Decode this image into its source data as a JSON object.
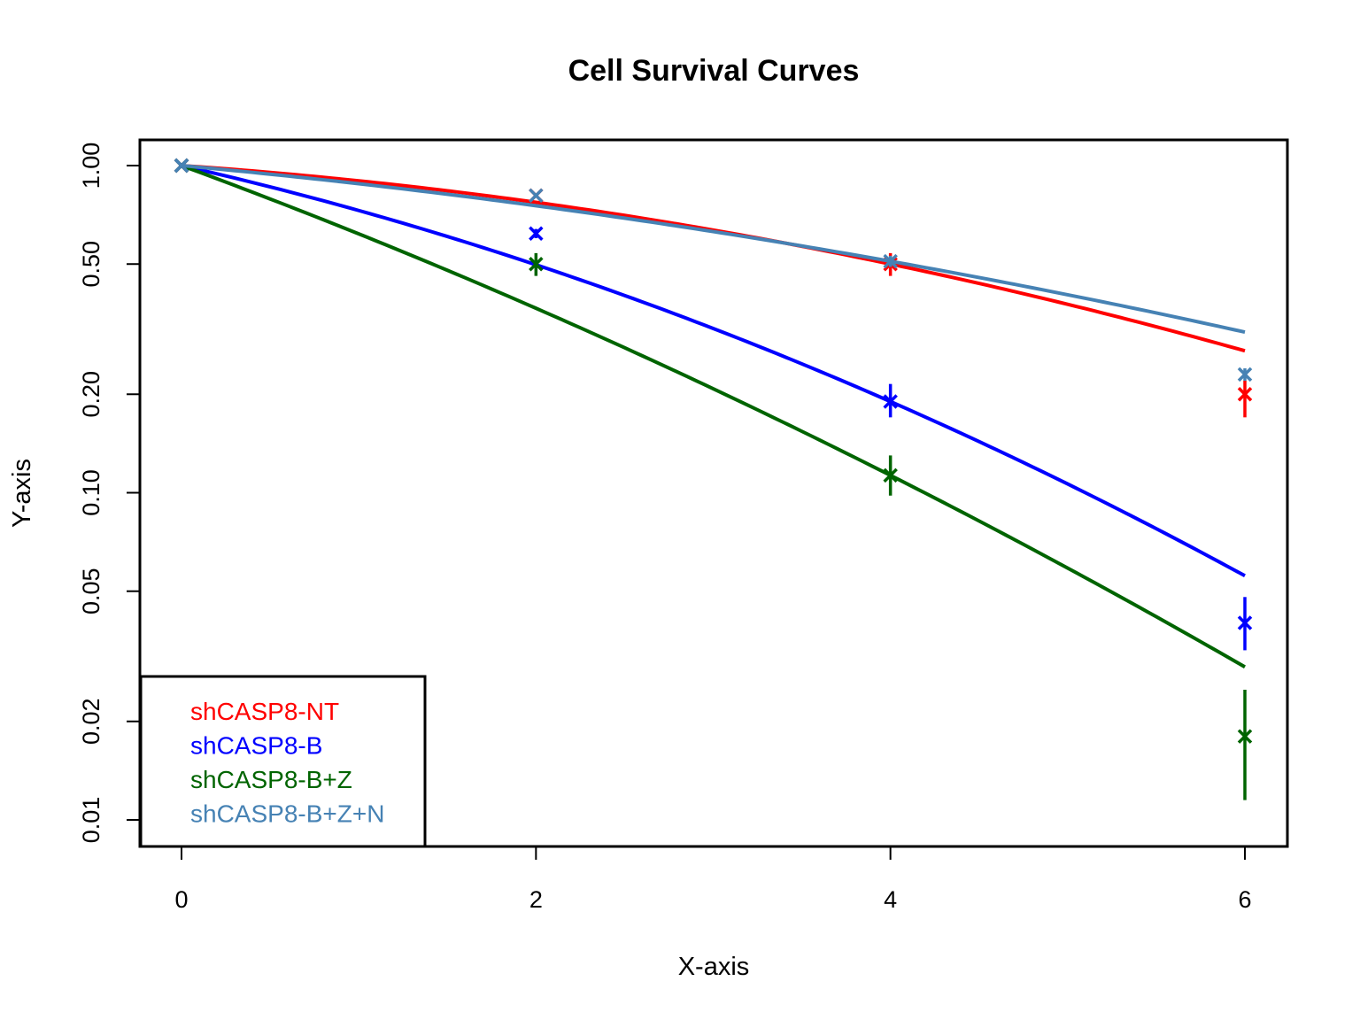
{
  "chart_data": {
    "type": "line",
    "title": "Cell Survival Curves",
    "xlabel": "X-axis",
    "ylabel": "Y-axis",
    "y_scale": "log",
    "xlim": [
      0,
      6
    ],
    "ylim": [
      0.01,
      1.0
    ],
    "x_ticks": [
      0,
      2,
      4,
      6
    ],
    "y_ticks": [
      1.0,
      0.5,
      0.2,
      0.1,
      0.05,
      0.02,
      0.01
    ],
    "y_tick_labels": [
      "1.00",
      "0.50",
      "0.20",
      "0.10",
      "0.05",
      "0.02",
      "0.01"
    ],
    "grid": false,
    "legend_position": "bottom-left",
    "series": [
      {
        "name": "shCASP8-NT",
        "color": "#ff0000",
        "x": [
          0,
          2,
          4,
          6
        ],
        "y": [
          1.0,
          0.81,
          0.5,
          0.2
        ],
        "err_low": [
          1.0,
          0.8,
          0.46,
          0.17
        ],
        "err_high": [
          1.0,
          0.82,
          0.54,
          0.22
        ],
        "fit_quad": -0.022
      },
      {
        "name": "shCASP8-B",
        "color": "#0000ff",
        "x": [
          0,
          2,
          4,
          6
        ],
        "y": [
          1.0,
          0.62,
          0.19,
          0.04
        ],
        "err_low": [
          1.0,
          0.6,
          0.17,
          0.033
        ],
        "err_high": [
          1.0,
          0.64,
          0.215,
          0.048
        ],
        "fit_quad": -0.033
      },
      {
        "name": "shCASP8-B+Z",
        "color": "#006400",
        "x": [
          0,
          2,
          4,
          6
        ],
        "y": [
          1.0,
          0.5,
          0.113,
          0.018
        ],
        "err_low": [
          1.0,
          0.46,
          0.098,
          0.0115
        ],
        "err_high": [
          1.0,
          0.54,
          0.13,
          0.025
        ],
        "fit_quad": -0.0215
      },
      {
        "name": "shCASP8-B+Z+N",
        "color": "#4682b4",
        "x": [
          0,
          2,
          4,
          6
        ],
        "y": [
          1.0,
          0.81,
          0.51,
          0.23
        ],
        "err_low": [
          1.0,
          0.8,
          0.49,
          0.22
        ],
        "err_high": [
          1.0,
          0.82,
          0.53,
          0.24
        ],
        "fit_quad": -0.0135
      }
    ]
  }
}
